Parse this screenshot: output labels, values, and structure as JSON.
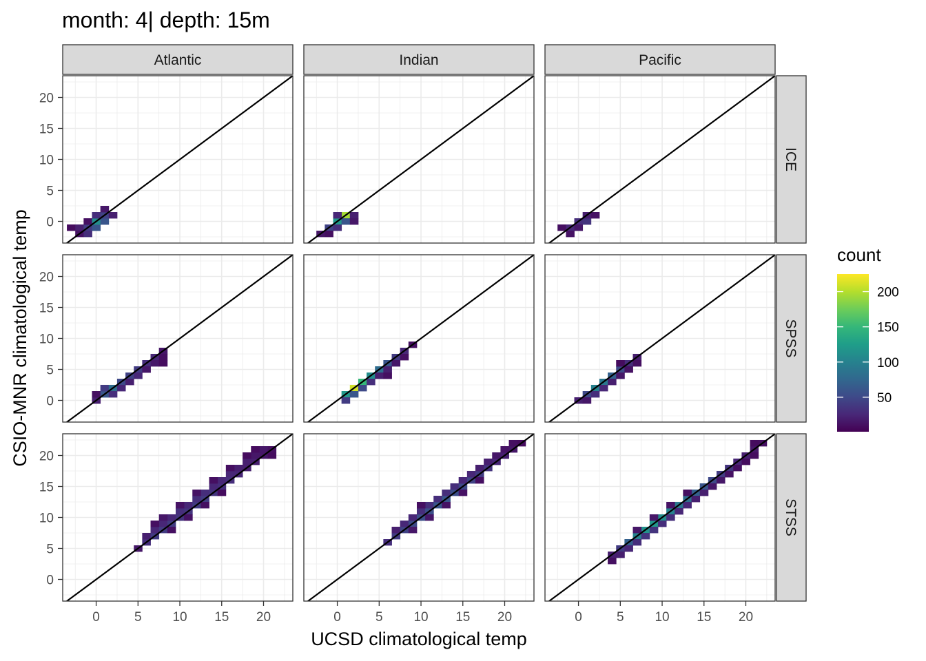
{
  "chart_data": {
    "type": "heatmap",
    "title": "month: 4| depth: 15m",
    "xlabel": "UCSD climatological temp",
    "ylabel": "CSIO-MNR climatological temp",
    "xlim": [
      -4,
      23.5
    ],
    "ylim": [
      -3.5,
      23.5
    ],
    "x_ticks": [
      0,
      5,
      10,
      15,
      20
    ],
    "y_ticks": [
      0,
      5,
      10,
      15,
      20
    ],
    "x_tick_labels": [
      "0",
      "5",
      "10",
      "15",
      "20"
    ],
    "y_tick_labels": [
      "0",
      "5",
      "10",
      "15",
      "20"
    ],
    "bin_width": 1,
    "reference_line": "y = x",
    "grid": true,
    "columns": [
      "Atlantic",
      "Indian",
      "Pacific"
    ],
    "rows": [
      "ICE",
      "SPSS",
      "STSS"
    ],
    "legend": {
      "title": "count",
      "position": "right",
      "breaks": [
        50,
        100,
        150,
        200
      ],
      "break_labels": [
        "50",
        "100",
        "150",
        "200"
      ],
      "range": [
        1,
        225
      ],
      "colors": [
        "#440154",
        "#482878",
        "#3E4A89",
        "#31688E",
        "#26828E",
        "#1F9E89",
        "#35B779",
        "#6DCD59",
        "#B4DE2C",
        "#FDE725"
      ]
    },
    "panels": [
      {
        "region": "Atlantic",
        "layer": "ICE",
        "cells": [
          [
            -3,
            -1,
            8
          ],
          [
            -2,
            -1,
            20
          ],
          [
            -2,
            -2,
            12
          ],
          [
            -1,
            -1,
            40
          ],
          [
            -1,
            -2,
            30
          ],
          [
            -1,
            0,
            10
          ],
          [
            0,
            -1,
            60
          ],
          [
            0,
            0,
            110
          ],
          [
            0,
            1,
            30
          ],
          [
            1,
            0,
            60
          ],
          [
            1,
            1,
            45
          ],
          [
            1,
            2,
            15
          ],
          [
            2,
            1,
            20
          ]
        ]
      },
      {
        "region": "Indian",
        "layer": "ICE",
        "cells": [
          [
            -2,
            -2,
            15
          ],
          [
            -1,
            -1,
            45
          ],
          [
            -1,
            -2,
            10
          ],
          [
            0,
            0,
            120
          ],
          [
            0,
            -1,
            30
          ],
          [
            1,
            1,
            195
          ],
          [
            1,
            0,
            60
          ],
          [
            0,
            1,
            25
          ],
          [
            2,
            1,
            20
          ],
          [
            2,
            0,
            15
          ]
        ]
      },
      {
        "region": "Pacific",
        "layer": "ICE",
        "cells": [
          [
            -2,
            -1,
            10
          ],
          [
            -1,
            -1,
            25
          ],
          [
            -1,
            -2,
            12
          ],
          [
            0,
            0,
            30
          ],
          [
            0,
            -1,
            15
          ],
          [
            1,
            0,
            35
          ],
          [
            1,
            1,
            20
          ],
          [
            2,
            1,
            12
          ]
        ]
      },
      {
        "region": "Atlantic",
        "layer": "SPSS",
        "cells": [
          [
            0,
            0,
            20
          ],
          [
            0,
            1,
            10
          ],
          [
            1,
            1,
            60
          ],
          [
            1,
            2,
            40
          ],
          [
            2,
            2,
            80
          ],
          [
            2,
            1,
            30
          ],
          [
            3,
            3,
            50
          ],
          [
            3,
            2,
            25
          ],
          [
            4,
            4,
            45
          ],
          [
            4,
            3,
            20
          ],
          [
            5,
            5,
            40
          ],
          [
            5,
            4,
            25
          ],
          [
            6,
            6,
            30
          ],
          [
            6,
            5,
            15
          ],
          [
            7,
            7,
            25
          ],
          [
            7,
            6,
            15
          ],
          [
            8,
            8,
            15
          ],
          [
            8,
            7,
            10
          ],
          [
            8,
            6,
            8
          ]
        ]
      },
      {
        "region": "Indian",
        "layer": "SPSS",
        "cells": [
          [
            1,
            1,
            120
          ],
          [
            1,
            0,
            40
          ],
          [
            2,
            2,
            210
          ],
          [
            2,
            1,
            60
          ],
          [
            3,
            3,
            150
          ],
          [
            3,
            2,
            50
          ],
          [
            4,
            4,
            110
          ],
          [
            4,
            3,
            30
          ],
          [
            5,
            5,
            80
          ],
          [
            5,
            4,
            20
          ],
          [
            6,
            6,
            60
          ],
          [
            6,
            5,
            20
          ],
          [
            7,
            7,
            40
          ],
          [
            7,
            6,
            15
          ],
          [
            8,
            8,
            25
          ],
          [
            8,
            7,
            10
          ],
          [
            9,
            9,
            10
          ],
          [
            6,
            4,
            10
          ]
        ]
      },
      {
        "region": "Pacific",
        "layer": "SPSS",
        "cells": [
          [
            0,
            0,
            20
          ],
          [
            1,
            1,
            50
          ],
          [
            1,
            0,
            15
          ],
          [
            2,
            2,
            100
          ],
          [
            2,
            1,
            30
          ],
          [
            3,
            3,
            90
          ],
          [
            3,
            2,
            25
          ],
          [
            4,
            4,
            70
          ],
          [
            4,
            3,
            20
          ],
          [
            5,
            5,
            50
          ],
          [
            5,
            4,
            15
          ],
          [
            6,
            6,
            30
          ],
          [
            6,
            5,
            12
          ],
          [
            7,
            7,
            20
          ],
          [
            7,
            6,
            10
          ],
          [
            5,
            6,
            8
          ]
        ]
      },
      {
        "region": "Atlantic",
        "layer": "STSS",
        "cells": [
          [
            5,
            5,
            15
          ],
          [
            6,
            6,
            30
          ],
          [
            6,
            7,
            20
          ],
          [
            7,
            7,
            40
          ],
          [
            7,
            8,
            25
          ],
          [
            8,
            8,
            40
          ],
          [
            8,
            9,
            25
          ],
          [
            9,
            9,
            40
          ],
          [
            9,
            10,
            25
          ],
          [
            10,
            10,
            35
          ],
          [
            10,
            11,
            30
          ],
          [
            11,
            11,
            35
          ],
          [
            11,
            12,
            25
          ],
          [
            12,
            12,
            40
          ],
          [
            12,
            13,
            30
          ],
          [
            13,
            13,
            40
          ],
          [
            13,
            14,
            30
          ],
          [
            14,
            14,
            35
          ],
          [
            14,
            15,
            25
          ],
          [
            15,
            15,
            30
          ],
          [
            15,
            16,
            25
          ],
          [
            16,
            16,
            30
          ],
          [
            16,
            17,
            25
          ],
          [
            17,
            17,
            25
          ],
          [
            17,
            18,
            20
          ],
          [
            18,
            18,
            20
          ],
          [
            18,
            19,
            20
          ],
          [
            19,
            19,
            20
          ],
          [
            19,
            20,
            15
          ],
          [
            20,
            20,
            15
          ],
          [
            20,
            21,
            15
          ],
          [
            21,
            21,
            10
          ],
          [
            21,
            20,
            8
          ],
          [
            7,
            9,
            10
          ],
          [
            8,
            10,
            15
          ],
          [
            10,
            12,
            12
          ],
          [
            12,
            14,
            12
          ],
          [
            14,
            16,
            10
          ],
          [
            16,
            18,
            10
          ],
          [
            18,
            20,
            8
          ],
          [
            19,
            21,
            8
          ],
          [
            9,
            8,
            10
          ],
          [
            11,
            10,
            12
          ],
          [
            13,
            12,
            10
          ],
          [
            15,
            14,
            8
          ]
        ]
      },
      {
        "region": "Indian",
        "layer": "STSS",
        "cells": [
          [
            6,
            6,
            30
          ],
          [
            7,
            7,
            40
          ],
          [
            7,
            8,
            20
          ],
          [
            8,
            8,
            45
          ],
          [
            8,
            9,
            25
          ],
          [
            9,
            9,
            50
          ],
          [
            9,
            10,
            25
          ],
          [
            10,
            10,
            55
          ],
          [
            10,
            11,
            30
          ],
          [
            11,
            11,
            55
          ],
          [
            11,
            12,
            30
          ],
          [
            12,
            12,
            60
          ],
          [
            12,
            13,
            30
          ],
          [
            13,
            13,
            60
          ],
          [
            13,
            14,
            30
          ],
          [
            14,
            14,
            55
          ],
          [
            14,
            15,
            30
          ],
          [
            15,
            15,
            50
          ],
          [
            15,
            16,
            25
          ],
          [
            16,
            16,
            45
          ],
          [
            16,
            17,
            25
          ],
          [
            17,
            17,
            40
          ],
          [
            17,
            18,
            20
          ],
          [
            18,
            18,
            35
          ],
          [
            18,
            19,
            20
          ],
          [
            19,
            19,
            25
          ],
          [
            19,
            20,
            15
          ],
          [
            20,
            20,
            20
          ],
          [
            20,
            21,
            12
          ],
          [
            21,
            21,
            15
          ],
          [
            21,
            22,
            10
          ],
          [
            22,
            22,
            8
          ],
          [
            9,
            8,
            15
          ],
          [
            11,
            10,
            15
          ],
          [
            13,
            12,
            12
          ],
          [
            15,
            14,
            12
          ],
          [
            17,
            16,
            10
          ],
          [
            10,
            12,
            10
          ]
        ]
      },
      {
        "region": "Pacific",
        "layer": "STSS",
        "cells": [
          [
            4,
            4,
            20
          ],
          [
            4,
            3,
            10
          ],
          [
            5,
            5,
            40
          ],
          [
            5,
            4,
            20
          ],
          [
            6,
            6,
            70
          ],
          [
            6,
            5,
            25
          ],
          [
            7,
            7,
            100
          ],
          [
            7,
            6,
            30
          ],
          [
            8,
            8,
            115
          ],
          [
            8,
            7,
            35
          ],
          [
            9,
            9,
            120
          ],
          [
            9,
            8,
            35
          ],
          [
            10,
            10,
            110
          ],
          [
            10,
            9,
            30
          ],
          [
            11,
            11,
            100
          ],
          [
            11,
            10,
            30
          ],
          [
            12,
            12,
            90
          ],
          [
            12,
            11,
            25
          ],
          [
            13,
            13,
            80
          ],
          [
            13,
            12,
            25
          ],
          [
            14,
            14,
            70
          ],
          [
            14,
            13,
            20
          ],
          [
            15,
            15,
            60
          ],
          [
            15,
            14,
            20
          ],
          [
            16,
            16,
            50
          ],
          [
            16,
            15,
            15
          ],
          [
            17,
            17,
            40
          ],
          [
            17,
            16,
            15
          ],
          [
            18,
            18,
            35
          ],
          [
            18,
            17,
            12
          ],
          [
            19,
            19,
            25
          ],
          [
            19,
            18,
            10
          ],
          [
            20,
            20,
            20
          ],
          [
            20,
            19,
            8
          ],
          [
            21,
            21,
            15
          ],
          [
            21,
            20,
            8
          ],
          [
            22,
            22,
            10
          ],
          [
            21,
            22,
            8
          ],
          [
            7,
            8,
            15
          ],
          [
            9,
            10,
            15
          ],
          [
            11,
            12,
            12
          ],
          [
            13,
            14,
            10
          ]
        ]
      }
    ]
  }
}
